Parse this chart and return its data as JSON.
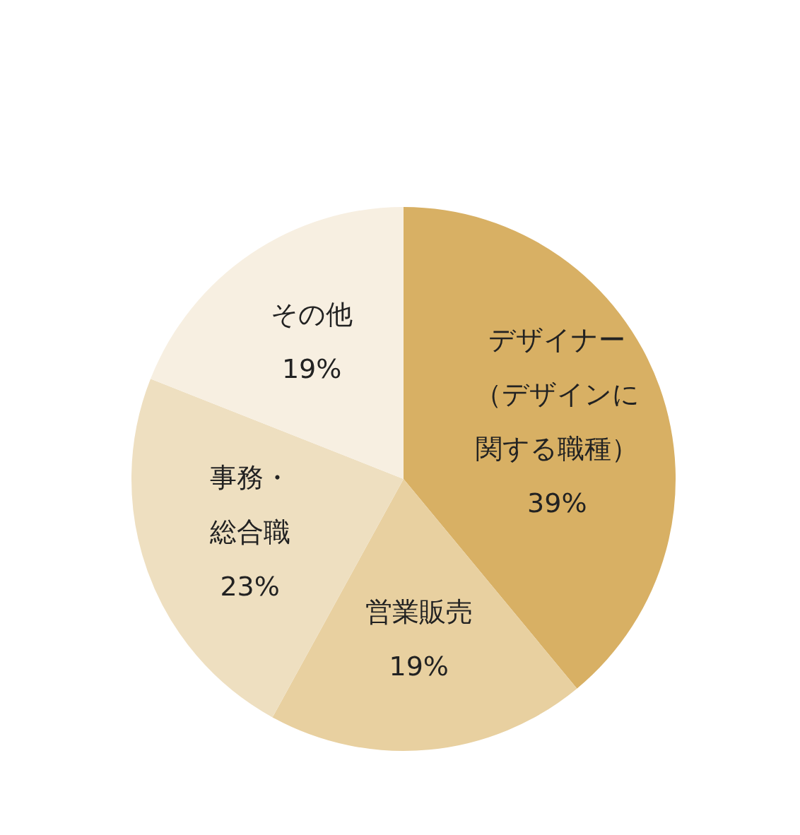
{
  "chart_data": {
    "type": "pie",
    "categories": [
      "デザイナー（デザインに関する職種）",
      "営業販売",
      "事務・総合職",
      "その他"
    ],
    "values": [
      39,
      19,
      23,
      19
    ],
    "colors": [
      "#d8b064",
      "#e8d0a0",
      "#eedfc0",
      "#f7efe1"
    ],
    "value_labels": [
      "39%",
      "19%",
      "23%",
      "19%"
    ],
    "legend": false
  }
}
